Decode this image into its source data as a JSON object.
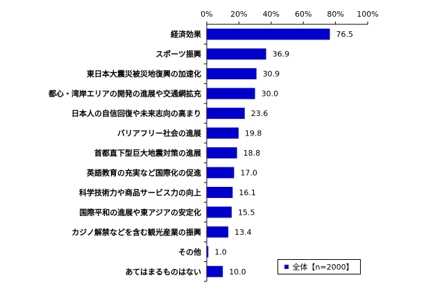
{
  "chart_data": {
    "type": "bar",
    "orientation": "horizontal",
    "title": "",
    "xlabel": "",
    "ylabel": "",
    "xlim": [
      0,
      100
    ],
    "ticks": [
      "0%",
      "20%",
      "40%",
      "60%",
      "80%",
      "100%"
    ],
    "tick_values": [
      0,
      20,
      40,
      60,
      80,
      100
    ],
    "grid": false,
    "legend_position": "bottom-right",
    "categories": [
      "経済効果",
      "スポーツ振興",
      "東日本大震災被災地復興の加速化",
      "都心・湾岸エリアの開発の進展や交通網拡充",
      "日本人の自信回復や未来志向の高まり",
      "バリアフリー社会の進展",
      "首都直下型巨大地震対策の進展",
      "英語教育の充実など国際化の促進",
      "科学技術力や商品サービス力の向上",
      "国際平和の進展や東アジアの安定化",
      "カジノ解禁などを含む観光産業の振興",
      "その他",
      "あてはまるものはない"
    ],
    "series": [
      {
        "name": "全体【n=2000】",
        "color": "#0000cc",
        "values": [
          76.5,
          36.9,
          30.9,
          30.0,
          23.6,
          19.8,
          18.8,
          17.0,
          16.1,
          15.5,
          13.4,
          1.0,
          10.0
        ],
        "labels": [
          "76.5",
          "36.9",
          "30.9",
          "30.0",
          "23.6",
          "19.8",
          "18.8",
          "17.0",
          "16.1",
          "15.5",
          "13.4",
          "1.0",
          "10.0"
        ]
      }
    ]
  }
}
